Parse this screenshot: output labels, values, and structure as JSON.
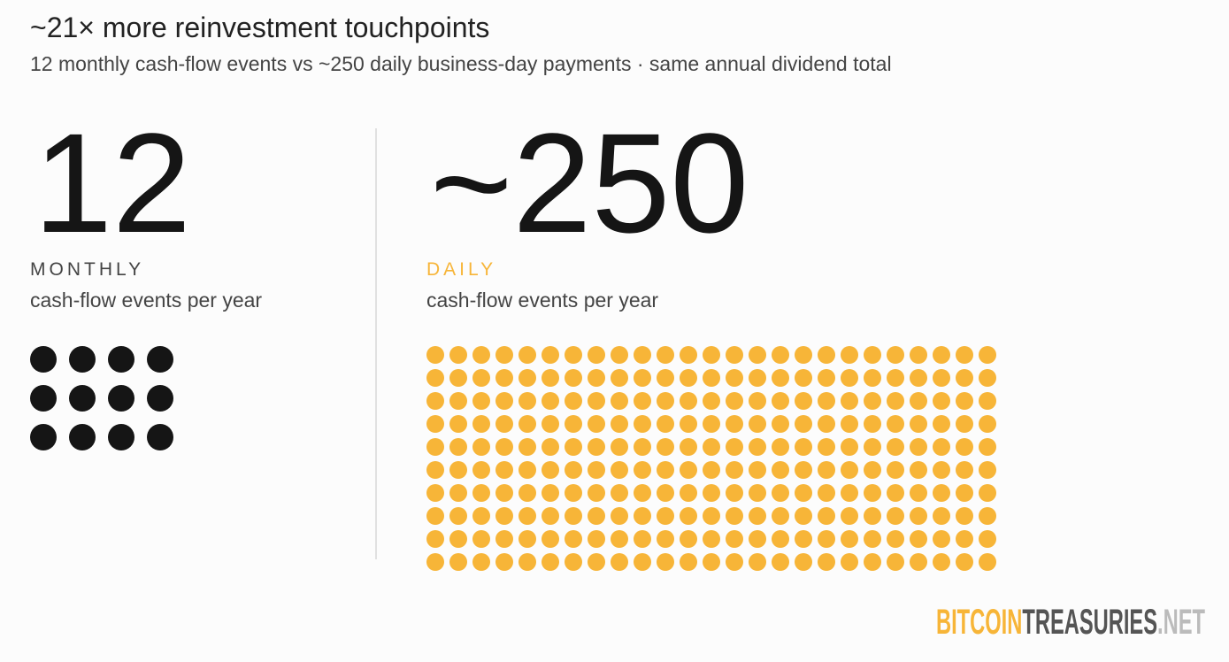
{
  "header": {
    "title": "~21× more reinvestment touchpoints",
    "subtitle": "12 monthly cash-flow events vs ~250 daily business-day payments · same annual dividend total"
  },
  "panels": [
    {
      "number": "12",
      "label": "MONTHLY",
      "caption": "cash-flow events per year",
      "dot_count": 12,
      "color": "#151515"
    },
    {
      "number": "~250",
      "label": "DAILY",
      "caption": "cash-flow events per year",
      "dot_count": 250,
      "color": "#f7b538"
    }
  ],
  "logo": {
    "part1": "BITCOIN",
    "part2": "TREASURIES",
    "part3": ".NET"
  }
}
